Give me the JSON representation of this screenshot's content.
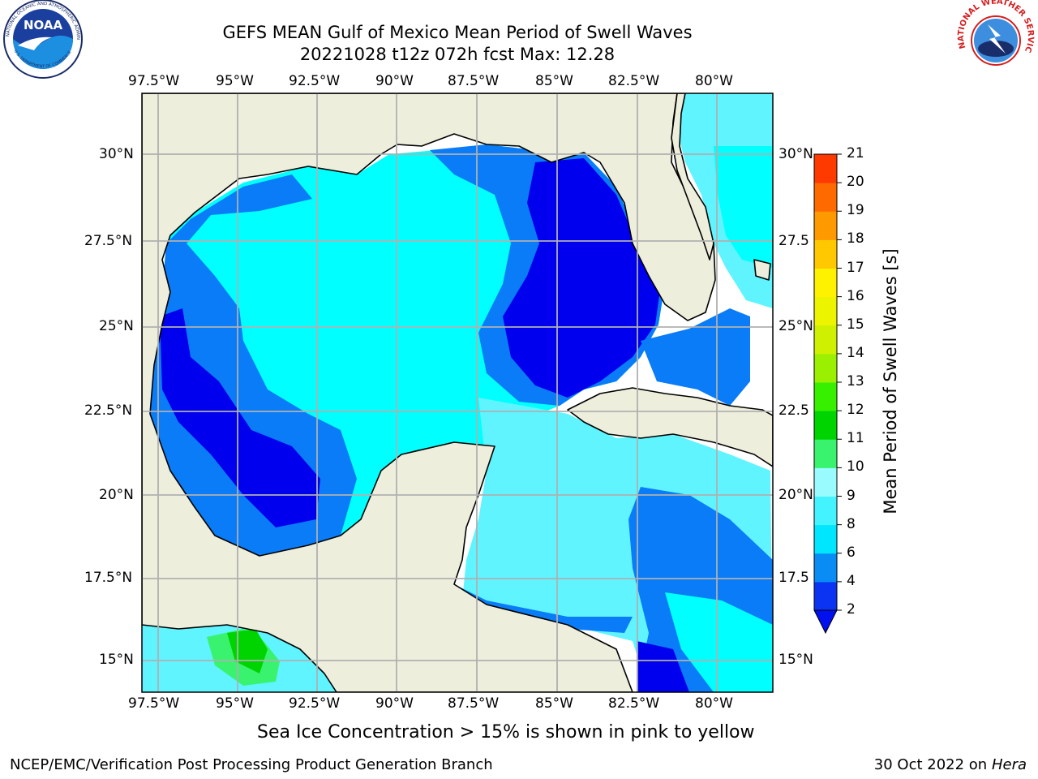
{
  "header": {
    "title_line1": "GEFS MEAN Gulf of Mexico Mean Period of Swell Waves",
    "title_line2": "20221028 t12z 072h fcst   Max: 12.28"
  },
  "logos": {
    "noaa": {
      "text": "NOAA",
      "ring_text": "NATIONAL OCEANIC AND ATMOSPHERIC ADMINISTRATION",
      "bottom_text": "U.S. DEPARTMENT OF COMMERCE"
    },
    "nws": {
      "ring_text": "NATIONAL WEATHER SERVICE"
    }
  },
  "map": {
    "lon_labels": [
      "97.5°W",
      "95°W",
      "92.5°W",
      "90°W",
      "87.5°W",
      "85°W",
      "82.5°W",
      "80°W"
    ],
    "lat_labels_left": [
      "30°N",
      "27.5°N",
      "25°N",
      "22.5°N",
      "20°N",
      "17.5°N",
      "15°N"
    ],
    "lat_labels_right": [
      "30°N",
      "27.5",
      "25°N",
      "22.5",
      "20°N",
      "17.5",
      "15°N"
    ]
  },
  "colorbar": {
    "label": "Mean Period of Swell Waves [s]",
    "ticks": [
      "2",
      "4",
      "6",
      "8",
      "9",
      "10",
      "11",
      "12",
      "13",
      "14",
      "15",
      "16",
      "17",
      "18",
      "19",
      "20",
      "21"
    ],
    "colors": [
      "#0b34f2",
      "#0a8cf5",
      "#00e6ff",
      "#43f3ff",
      "#9afbff",
      "#39f36f",
      "#00d400",
      "#36f000",
      "#9af000",
      "#cff000",
      "#ecf400",
      "#fff200",
      "#ffc800",
      "#ff9900",
      "#ff6a00",
      "#ff3a00",
      "#ff0000"
    ],
    "under_color": "#0010ee"
  },
  "colors": {
    "land": "#eeeedd",
    "deep_blue": "#0000ee",
    "mid_blue": "#0a7cf7",
    "cyan": "#00ffff",
    "light_cyan": "#5ff4ff",
    "green": "#39f36f",
    "bright_green": "#00d400",
    "grid": "#b0b0b0"
  },
  "footer": {
    "note": "Sea Ice Concentration > 15% is shown in pink to yellow",
    "left": "NCEP/EMC/Verification Post Processing Product Generation Branch",
    "right_prefix": "30 Oct 2022 on ",
    "right_host": "Hera"
  }
}
